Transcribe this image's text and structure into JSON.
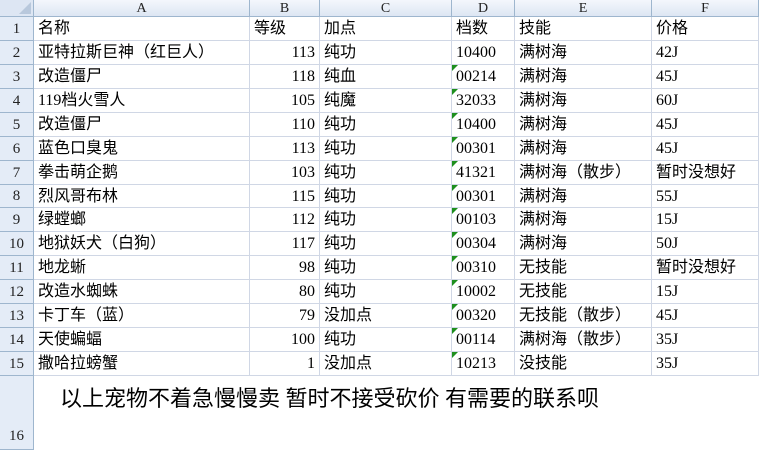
{
  "columns": [
    "A",
    "B",
    "C",
    "D",
    "E",
    "F"
  ],
  "header_row": [
    "名称",
    "等级",
    "加点",
    "档数",
    "技能",
    "价格"
  ],
  "rows": [
    [
      "亚特拉斯巨神（红巨人）",
      "113",
      "纯功",
      "10400",
      "满树海",
      "42J"
    ],
    [
      "改造僵尸",
      "118",
      "纯血",
      "00214",
      "满树海",
      "45J"
    ],
    [
      "119档火雪人",
      "105",
      "纯魔",
      "32033",
      "满树海",
      "60J"
    ],
    [
      "改造僵尸",
      "110",
      "纯功",
      "10400",
      "满树海",
      "45J"
    ],
    [
      "蓝色口臭鬼",
      "113",
      "纯功",
      "00301",
      "满树海",
      "45J"
    ],
    [
      "拳击萌企鹅",
      "103",
      "纯功",
      "41321",
      "满树海（散步）",
      "暂时没想好"
    ],
    [
      "烈风哥布林",
      "115",
      "纯功",
      "00301",
      "满树海",
      "55J"
    ],
    [
      "绿螳螂",
      "112",
      "纯功",
      "00103",
      "满树海",
      "15J"
    ],
    [
      "地狱妖犬（白狗）",
      "117",
      "纯功",
      "00304",
      "满树海",
      "50J"
    ],
    [
      "地龙蜥",
      "98",
      "纯功",
      "00310",
      "无技能",
      "暂时没想好"
    ],
    [
      "改造水蜘蛛",
      "80",
      "纯功",
      "10002",
      "无技能",
      "15J"
    ],
    [
      "卡丁车（蓝）",
      "79",
      "没加点",
      "00320",
      "无技能（散步）",
      "45J"
    ],
    [
      "天使蝙蝠",
      "100",
      "纯功",
      "00114",
      "满树海（散步）",
      "35J"
    ],
    [
      "撒哈拉螃蟹",
      "1",
      "没加点",
      "10213",
      "没技能",
      "35J"
    ]
  ],
  "note": "以上宠物不着急慢慢卖 暂时不接受砍价 有需要的联系呗",
  "colors": {
    "header_bg": "#dde6f3",
    "grid": "#d0d7e5",
    "text_number_indicator": "#1e8f1e"
  }
}
